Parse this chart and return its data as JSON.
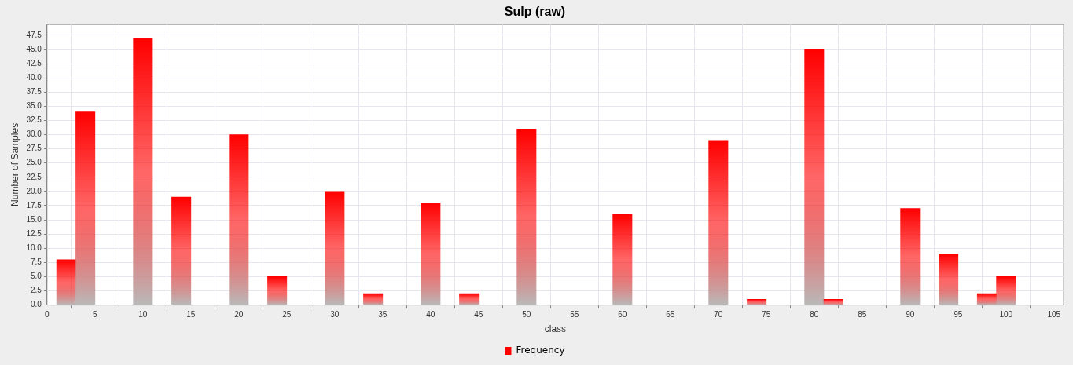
{
  "chart_data": {
    "type": "bar",
    "title": "Sulp (raw)",
    "xlabel": "class",
    "ylabel": "Number of Samples",
    "x": [
      2,
      4,
      10,
      14,
      20,
      24,
      30,
      34,
      40,
      44,
      50,
      60,
      70,
      74,
      80,
      82,
      90,
      94,
      98,
      100
    ],
    "series": [
      {
        "name": "Frequency",
        "color": "#ff0000",
        "values": [
          8,
          34,
          47,
          19,
          30,
          5,
          20,
          2,
          18,
          2,
          31,
          16,
          29,
          1,
          45,
          1,
          17,
          9,
          2,
          5
        ]
      }
    ],
    "xlim": [
      0,
      106
    ],
    "xticks": [
      0,
      5,
      10,
      15,
      20,
      25,
      30,
      35,
      40,
      45,
      50,
      55,
      60,
      65,
      70,
      75,
      80,
      85,
      90,
      95,
      100,
      105
    ],
    "ylim": [
      0,
      49.4
    ],
    "yticks": [
      {
        "value": 0,
        "label": "0.0"
      },
      {
        "value": 2.5,
        "label": "2.5"
      },
      {
        "value": 5,
        "label": "5.0"
      },
      {
        "value": 7.5,
        "label": "7.5"
      },
      {
        "value": 10,
        "label": "10.0"
      },
      {
        "value": 12.5,
        "label": "12.5"
      },
      {
        "value": 15,
        "label": "15.0"
      },
      {
        "value": 17.5,
        "label": "17.5"
      },
      {
        "value": 20,
        "label": "20.0"
      },
      {
        "value": 22.5,
        "label": "22.5"
      },
      {
        "value": 25,
        "label": "25.0"
      },
      {
        "value": 27.5,
        "label": "27.5"
      },
      {
        "value": 30,
        "label": "30.0"
      },
      {
        "value": 32.5,
        "label": "32.5"
      },
      {
        "value": 35,
        "label": "35.0"
      },
      {
        "value": 37.5,
        "label": "37.5"
      },
      {
        "value": 40,
        "label": "40.0"
      },
      {
        "value": 42.5,
        "label": "42.5"
      },
      {
        "value": 45,
        "label": "45.0"
      },
      {
        "value": 47.5,
        "label": "47.5"
      }
    ],
    "grid": true,
    "legend": "bottom"
  }
}
